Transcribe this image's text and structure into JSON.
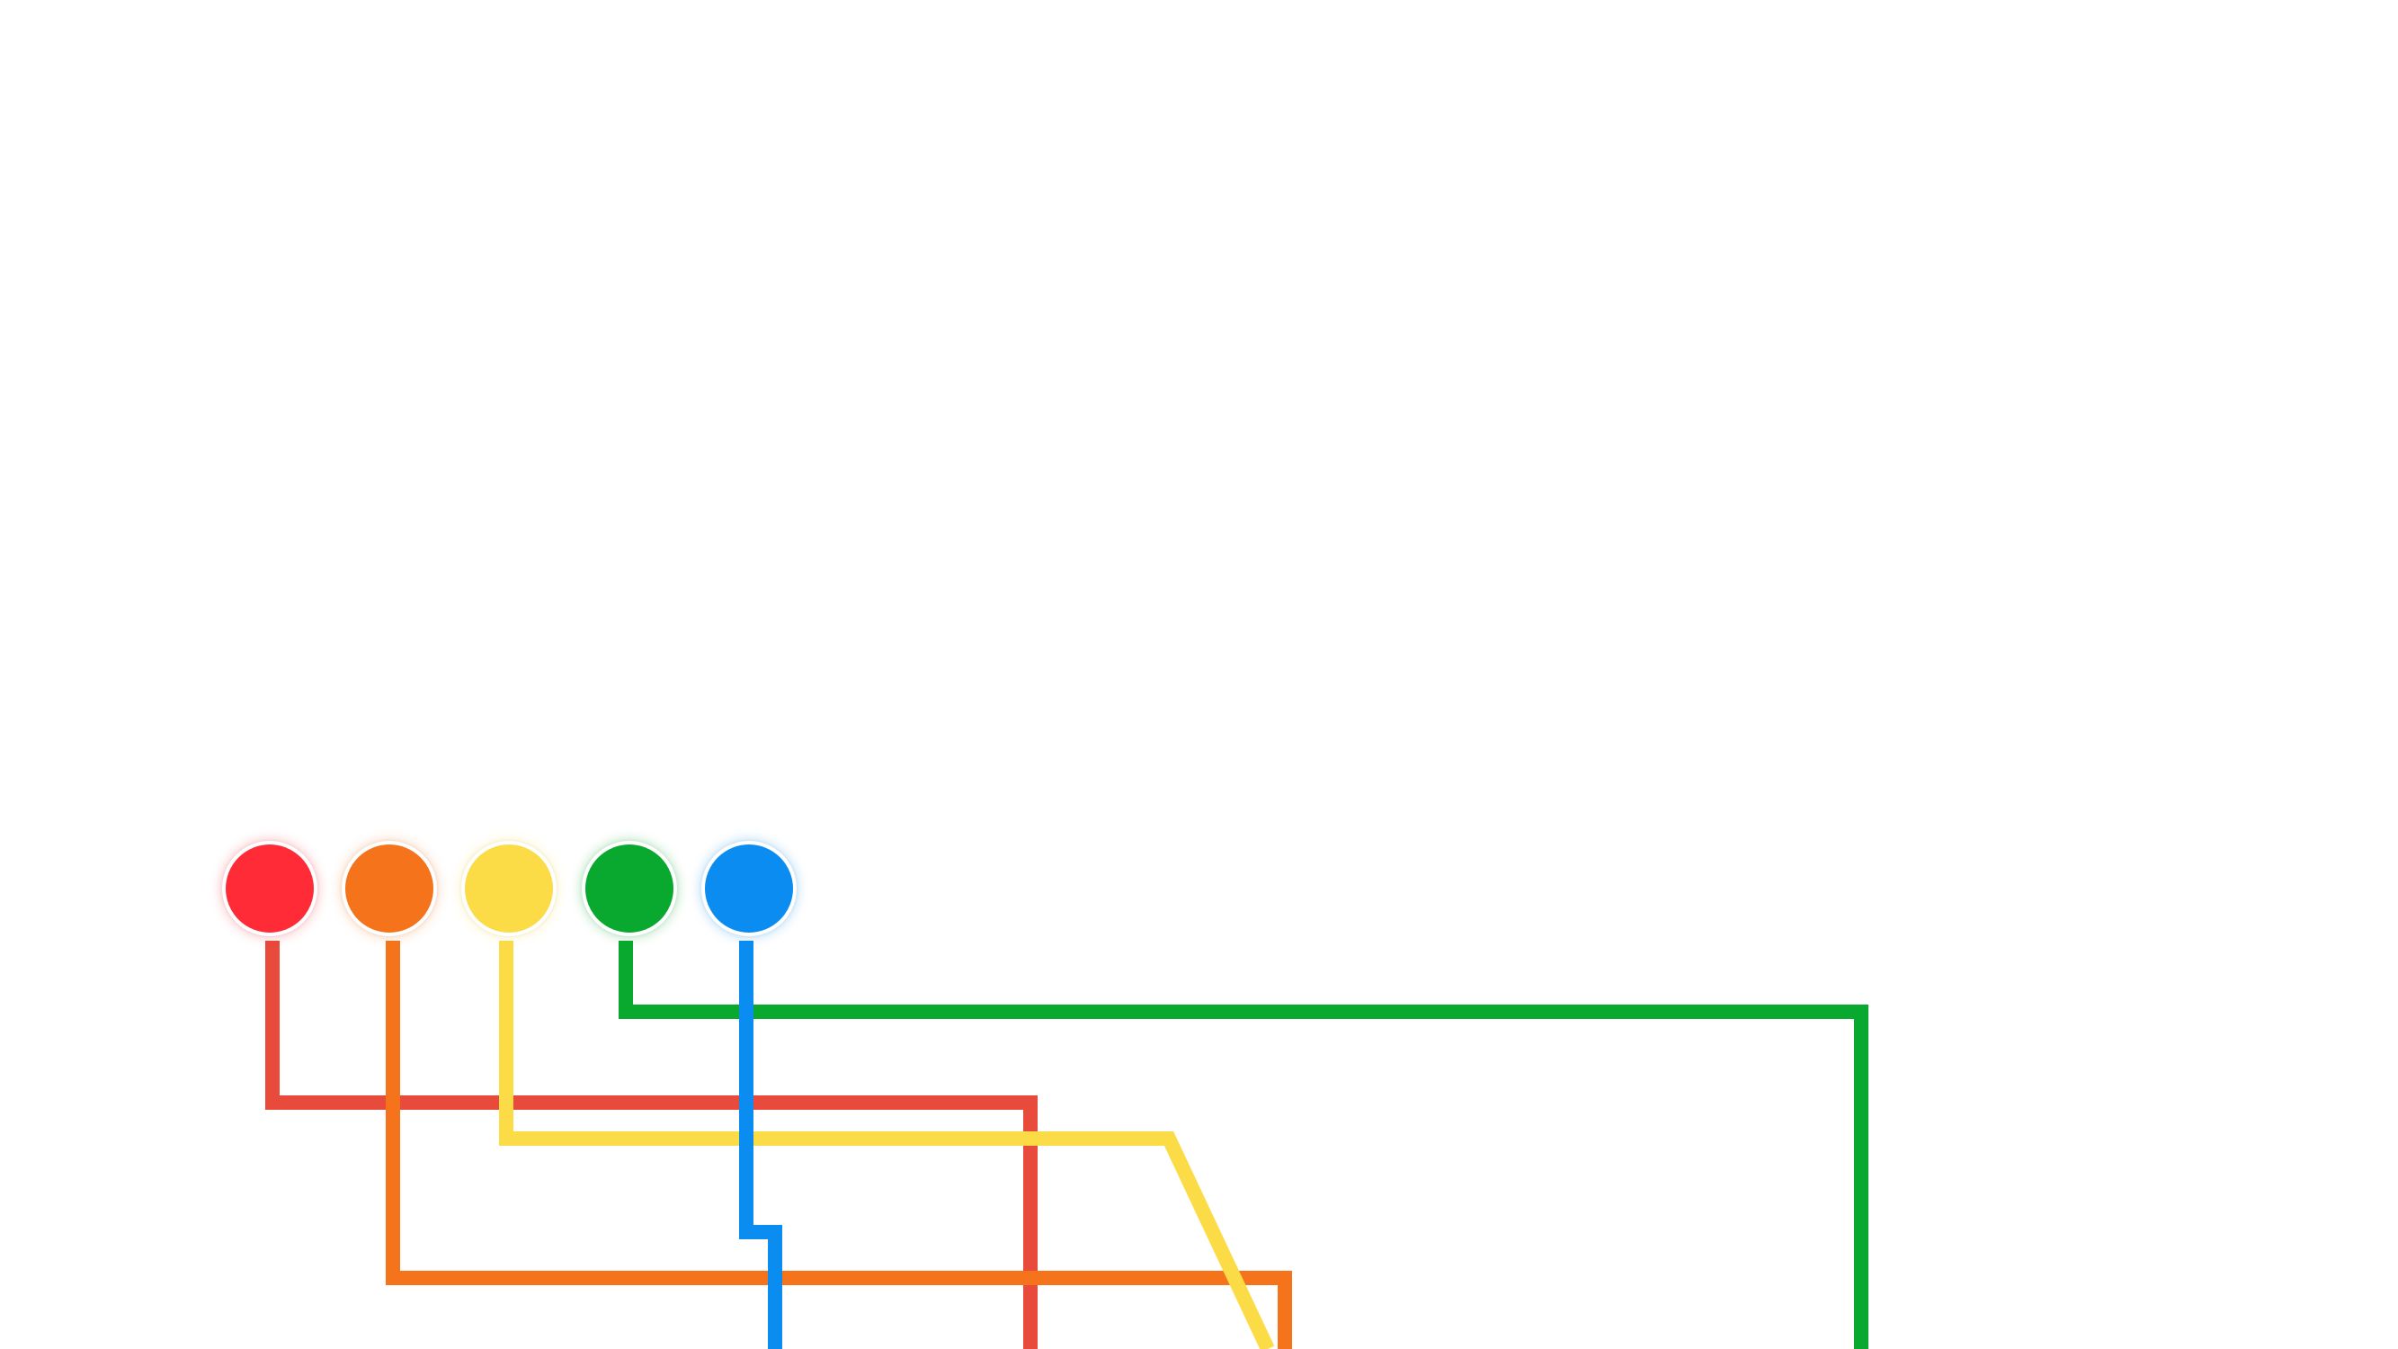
{
  "nodes": [
    {
      "id": "red",
      "color": "#ff2b36"
    },
    {
      "id": "orange",
      "color": "#f5741b"
    },
    {
      "id": "yellow",
      "color": "#fbdb46"
    },
    {
      "id": "green",
      "color": "#09a82e"
    },
    {
      "id": "blue",
      "color": "#0b8cf0"
    }
  ],
  "wires": [
    {
      "id": "red",
      "color": "#e84a3c"
    },
    {
      "id": "orange",
      "color": "#f5741b"
    },
    {
      "id": "yellow",
      "color": "#fbdb46"
    },
    {
      "id": "green",
      "color": "#09a82e"
    },
    {
      "id": "blue",
      "color": "#0b8cf0"
    }
  ]
}
